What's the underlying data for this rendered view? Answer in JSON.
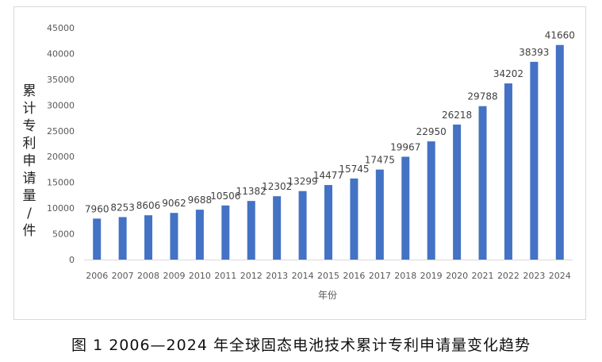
{
  "caption": "图 1 2006—2024 年全球固态电池技术累计专利申请量变化趋势",
  "chart_data": {
    "type": "bar",
    "xlabel": "年份",
    "ylabel": "累计专利申请量/件",
    "ylim": [
      0,
      45000
    ],
    "yticks": [
      0,
      5000,
      10000,
      15000,
      20000,
      25000,
      30000,
      35000,
      40000,
      45000
    ],
    "grid": false,
    "legend": "none",
    "bar_color": "#4472C4",
    "categories": [
      "2006",
      "2007",
      "2008",
      "2009",
      "2010",
      "2011",
      "2012",
      "2013",
      "2014",
      "2015",
      "2016",
      "2017",
      "2018",
      "2019",
      "2020",
      "2021",
      "2022",
      "2023",
      "2024"
    ],
    "values": [
      7960,
      8253,
      8606,
      9062,
      9688,
      10506,
      11382,
      12302,
      13299,
      14477,
      15745,
      17475,
      19967,
      22950,
      26218,
      29788,
      34202,
      38393,
      41660
    ]
  }
}
